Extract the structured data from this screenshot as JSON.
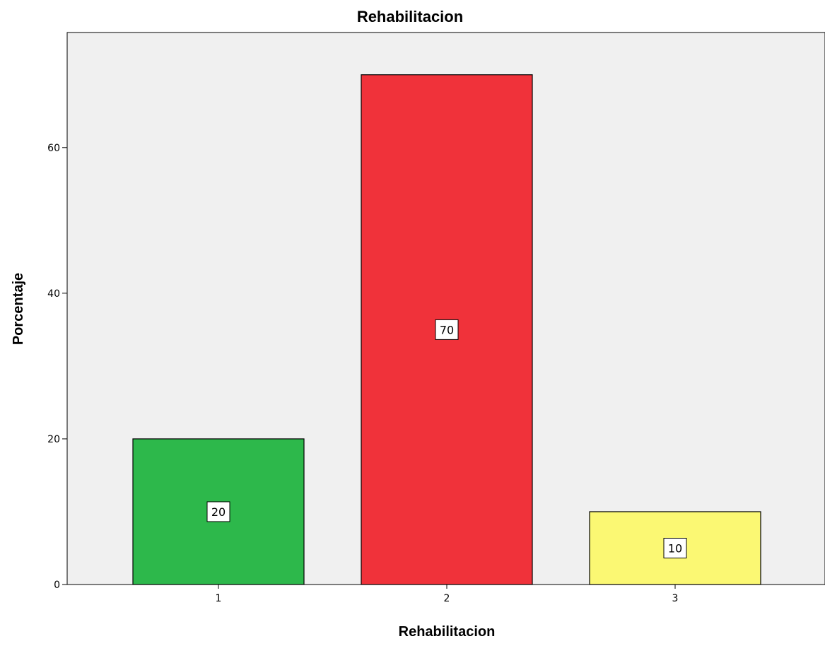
{
  "chart_data": {
    "type": "bar",
    "title": "Rehabilitacion",
    "xlabel": "Rehabilitacion",
    "ylabel": "Porcentaje",
    "categories": [
      "1",
      "2",
      "3"
    ],
    "values": [
      20,
      70,
      10
    ],
    "data_labels": [
      "20",
      "70",
      "10"
    ],
    "bar_colors": [
      "#2db84b",
      "#f0323a",
      "#fbf873"
    ],
    "ylim": [
      0,
      75.8
    ],
    "yticks": [
      0,
      20,
      40,
      60
    ],
    "ytick_labels": [
      "0",
      "20",
      "40",
      "60"
    ],
    "grid": false,
    "legend": "none",
    "plot_background": "#f0f0f0"
  }
}
